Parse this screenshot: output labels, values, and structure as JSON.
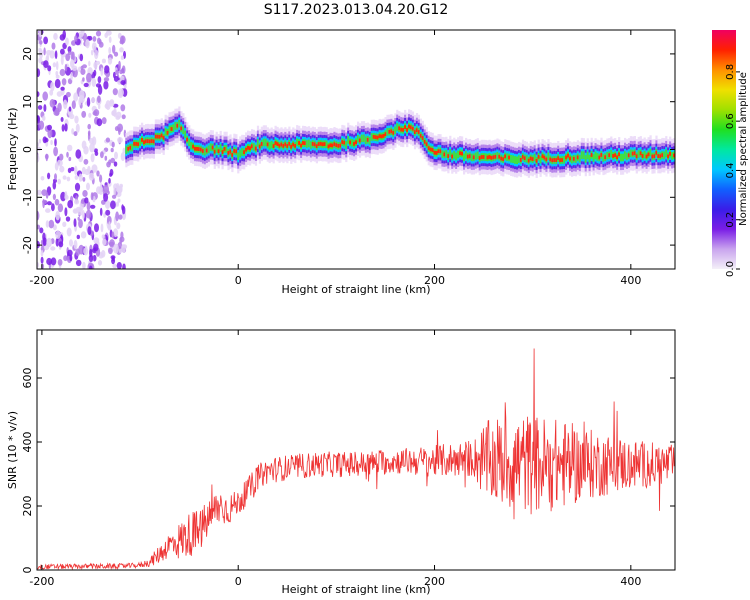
{
  "figure": {
    "title": "S117.2023.013.04.20.G12"
  },
  "chart_data": [
    {
      "type": "heatmap",
      "xlabel": "Height of straight line (km)",
      "ylabel": "Frequency (Hz)",
      "xlim": [
        -205,
        445
      ],
      "ylim": [
        -25,
        25
      ],
      "xticks": [
        -200,
        0,
        200,
        400
      ],
      "yticks": [
        -20,
        -10,
        0,
        10,
        20
      ],
      "ridge": {
        "x": [
          -115,
          -100,
          -90,
          -80,
          -70,
          -60,
          -50,
          -40,
          -20,
          0,
          10,
          20,
          60,
          100,
          110,
          130,
          150,
          165,
          175,
          185,
          195,
          210,
          240,
          280,
          320,
          360,
          400,
          440
        ],
        "y": [
          0,
          1.5,
          2,
          2.5,
          4,
          5,
          1,
          0,
          0,
          -1,
          0,
          1,
          1,
          1,
          1.5,
          2,
          3.5,
          4.5,
          4.5,
          3,
          0,
          -1,
          -1.5,
          -2,
          -1.8,
          -1.5,
          -1.2,
          -1
        ]
      },
      "noise_region_x": [
        -205,
        -115
      ],
      "colorbar": {
        "label": "Normalized spectral amplitude",
        "ticks": [
          0.0,
          0.2,
          0.4,
          0.6,
          0.8
        ],
        "range": [
          0,
          0.97
        ],
        "colors": [
          "#f4f0f8",
          "#c9a4ee",
          "#7a1de6",
          "#3a1de8",
          "#1060ff",
          "#00c8ff",
          "#00e8a0",
          "#20e020",
          "#a0e000",
          "#f0e000",
          "#ff9000",
          "#ff2000",
          "#f00060"
        ]
      }
    },
    {
      "type": "line",
      "xlabel": "Height of straight line (km)",
      "ylabel": "SNR (10 * v/v)",
      "xlim": [
        -205,
        445
      ],
      "ylim": [
        0,
        750
      ],
      "xticks": [
        -200,
        0,
        200,
        400
      ],
      "yticks": [
        0,
        200,
        400,
        600
      ],
      "line_color": "#ee3333",
      "envelope": {
        "x": [
          -205,
          -120,
          -100,
          -90,
          -80,
          -70,
          -60,
          -50,
          -40,
          -30,
          -20,
          -10,
          0,
          10,
          20,
          30,
          50,
          80,
          120,
          160,
          200,
          240,
          250,
          270,
          300,
          330,
          360,
          400,
          445
        ],
        "mean": [
          10,
          12,
          15,
          25,
          50,
          80,
          90,
          110,
          120,
          160,
          200,
          190,
          210,
          250,
          290,
          310,
          320,
          330,
          330,
          340,
          340,
          350,
          340,
          340,
          330,
          330,
          330,
          330,
          330
        ],
        "spread": [
          8,
          8,
          8,
          15,
          30,
          40,
          60,
          70,
          70,
          60,
          60,
          50,
          40,
          40,
          40,
          40,
          40,
          40,
          40,
          40,
          50,
          60,
          120,
          150,
          160,
          140,
          110,
          80,
          60
        ]
      }
    }
  ]
}
